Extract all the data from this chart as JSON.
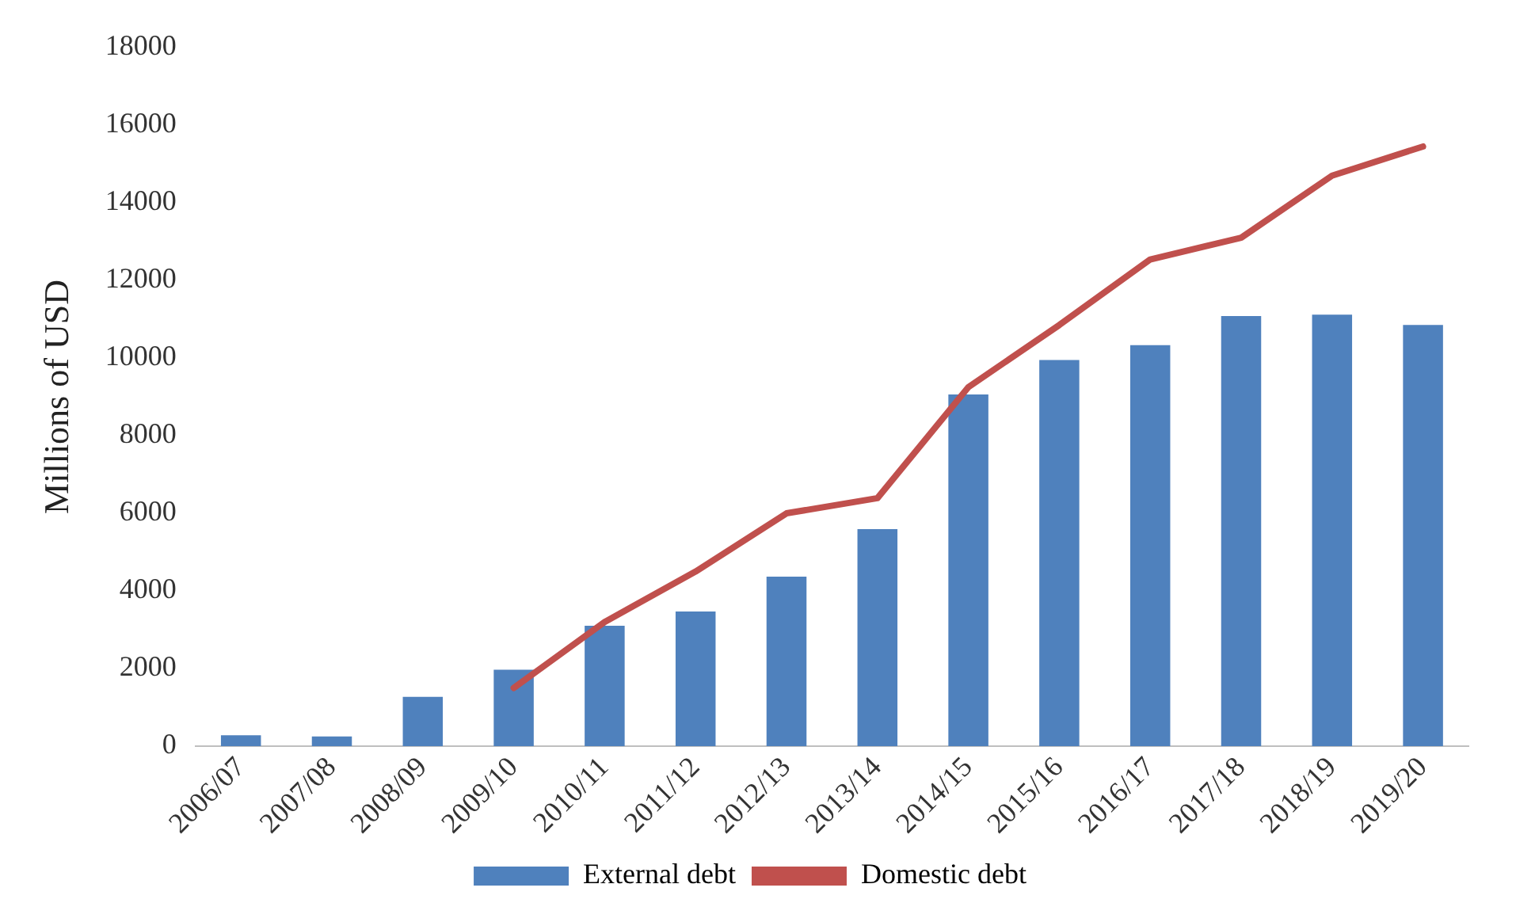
{
  "chart_data": {
    "type": "bar",
    "ylabel": "Millions of USD",
    "categories": [
      "2006/07",
      "2007/08",
      "2008/09",
      "2009/10",
      "2010/11",
      "2011/12",
      "2012/13",
      "2013/14",
      "2014/15",
      "2015/16",
      "2016/17",
      "2017/18",
      "2018/19",
      "2019/20"
    ],
    "series": [
      {
        "name": "External debt",
        "color": "#4f81bd",
        "values": [
          280,
          250,
          1270,
          1970,
          3100,
          3470,
          4370,
          5590,
          9060,
          9950,
          10330,
          11080,
          11120,
          10850
        ]
      },
      {
        "name": "Domestic debt",
        "type": "line",
        "color": "#c0504d",
        "values": [
          null,
          null,
          null,
          1500,
          3200,
          4500,
          6000,
          6390,
          9250,
          10850,
          12540,
          13100,
          14700,
          15450
        ]
      }
    ],
    "ylim": [
      0,
      18000
    ],
    "yticks": [
      0,
      2000,
      4000,
      6000,
      8000,
      10000,
      12000,
      14000,
      16000,
      18000
    ],
    "grid": false,
    "legend": "bottom",
    "marker": "none"
  }
}
